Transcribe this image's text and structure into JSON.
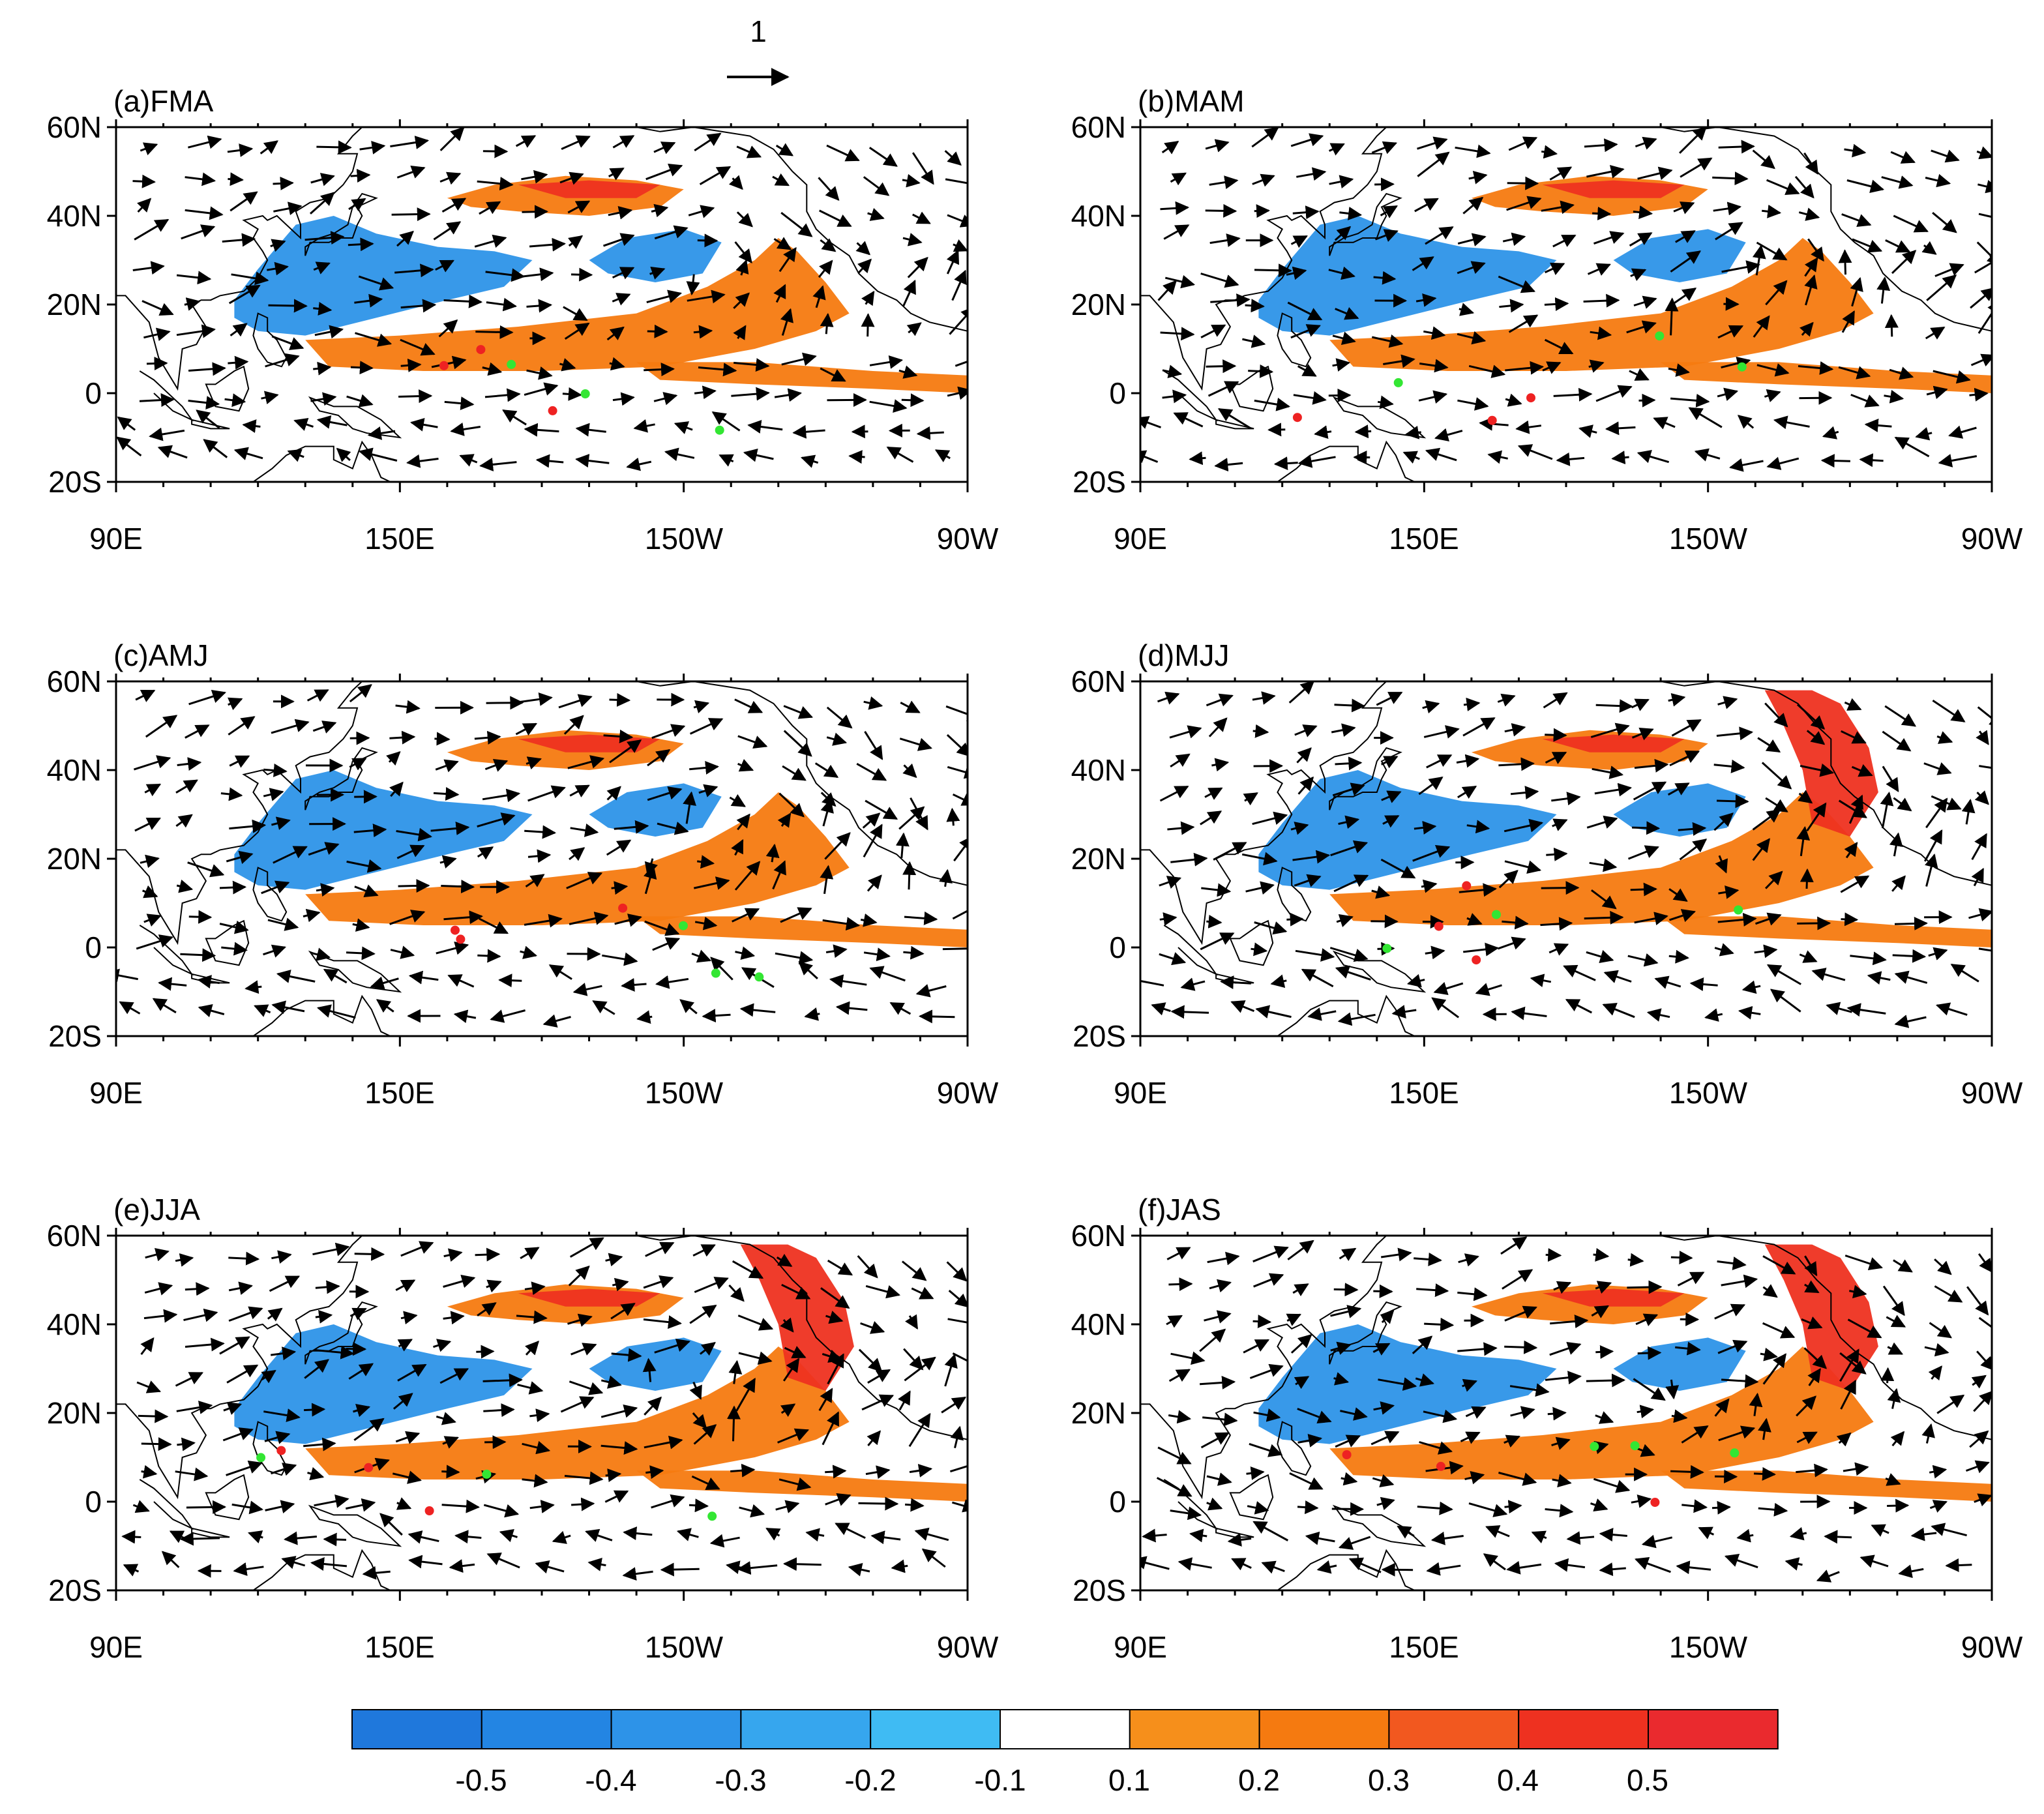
{
  "figure": {
    "reference_vector": {
      "label": "1"
    },
    "panels": [
      {
        "id": "a",
        "title": "(a)FMA"
      },
      {
        "id": "b",
        "title": "(b)MAM"
      },
      {
        "id": "c",
        "title": "(c)AMJ"
      },
      {
        "id": "d",
        "title": "(d)MJJ"
      },
      {
        "id": "e",
        "title": "(e)JJA"
      },
      {
        "id": "f",
        "title": "(f)JAS"
      }
    ],
    "lat_ticks": [
      "60N",
      "40N",
      "20N",
      "0",
      "20S"
    ],
    "lon_ticks": [
      "90E",
      "150E",
      "150W",
      "90W"
    ],
    "colorbar": {
      "labels": [
        "-0.5",
        "-0.4",
        "-0.3",
        "-0.2",
        "-0.1",
        "0.1",
        "0.2",
        "0.3",
        "0.4",
        "0.5"
      ],
      "colors": [
        "#1F78DC",
        "#2385E3",
        "#2D93E8",
        "#36A6EE",
        "#3FBBF3",
        "#FFFFFF",
        "#F68F1B",
        "#F57A10",
        "#F2581F",
        "#EE3120",
        "#EA2A2E"
      ]
    },
    "colors": {
      "negative": "#2D93E8",
      "positive": "#F57A10",
      "strong_positive": "#EE3120",
      "sig_dot_a": "#33E633",
      "sig_dot_b": "#EE2222"
    }
  }
}
